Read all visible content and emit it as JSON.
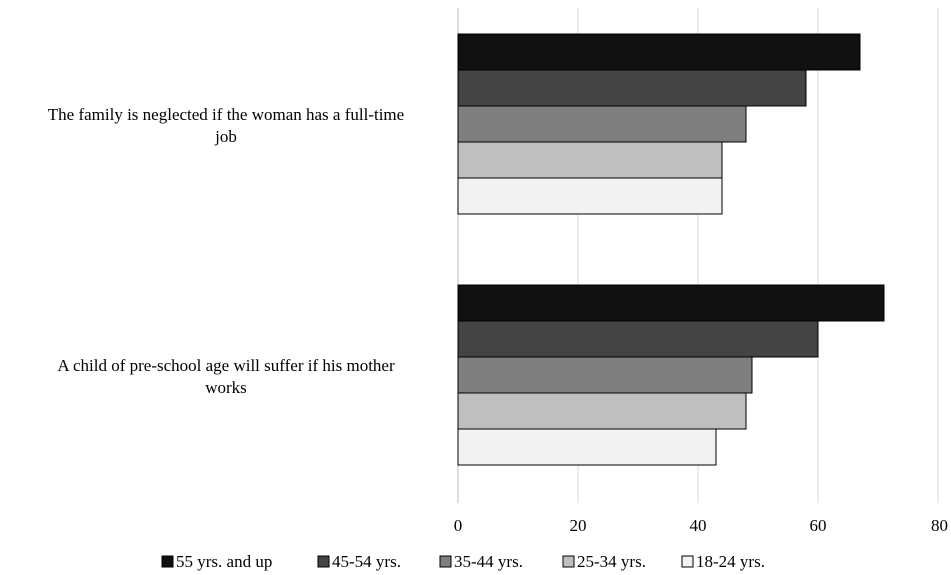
{
  "chart_data": {
    "type": "bar",
    "orientation": "horizontal",
    "categories": [
      [
        "The family is neglected if the woman has a full-time",
        "job"
      ],
      [
        "A child of pre-school age will suffer if his mother",
        "works"
      ]
    ],
    "series": [
      {
        "name": "55 yrs. and up",
        "color": "#111111",
        "values": [
          67,
          71
        ]
      },
      {
        "name": "45-54 yrs.",
        "color": "#444444",
        "values": [
          58,
          60
        ]
      },
      {
        "name": "35-44 yrs.",
        "color": "#7f7f7f",
        "values": [
          48,
          49
        ]
      },
      {
        "name": "25-34 yrs.",
        "color": "#bfbfbf",
        "values": [
          44,
          48
        ]
      },
      {
        "name": "18-24 yrs.",
        "color": "#f2f2f2",
        "values": [
          44,
          43
        ]
      }
    ],
    "x_ticks": [
      "0",
      "20",
      "40",
      "60",
      "80"
    ],
    "xlim": [
      0,
      80
    ],
    "grid": true,
    "legend_position": "bottom"
  }
}
